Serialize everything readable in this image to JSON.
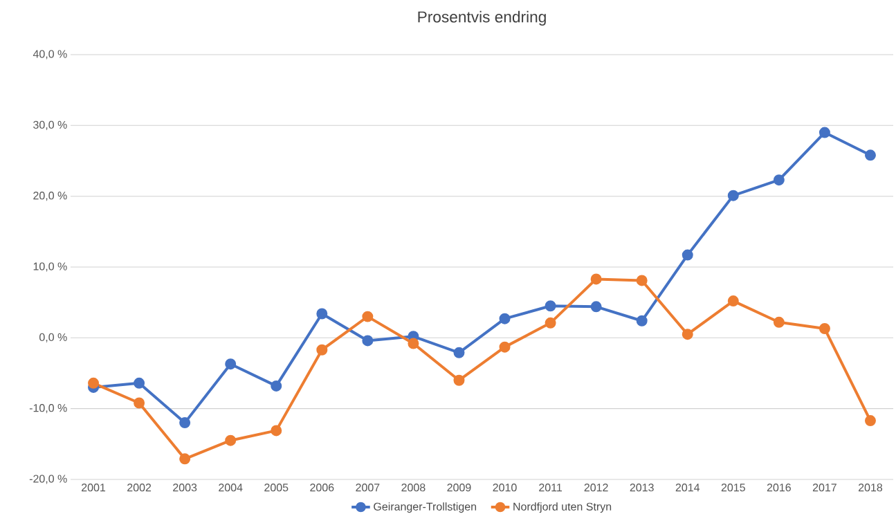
{
  "chart_data": {
    "type": "line",
    "title": "Prosentvis endring",
    "categories": [
      "2001",
      "2002",
      "2003",
      "2004",
      "2005",
      "2006",
      "2007",
      "2008",
      "2009",
      "2010",
      "2011",
      "2012",
      "2013",
      "2014",
      "2015",
      "2016",
      "2017",
      "2018"
    ],
    "series": [
      {
        "name": "Geiranger-Trollstigen",
        "color": "#4472c4",
        "values": [
          -7.0,
          -6.4,
          -12.0,
          -3.7,
          -6.8,
          3.4,
          -0.4,
          0.2,
          -2.1,
          2.7,
          4.5,
          4.4,
          2.4,
          11.7,
          20.1,
          22.3,
          29.0,
          25.8
        ]
      },
      {
        "name": "Nordfjord uten Stryn",
        "color": "#ed7d31",
        "values": [
          -6.4,
          -9.2,
          -17.1,
          -14.5,
          -13.1,
          -1.7,
          3.0,
          -0.8,
          -6.0,
          -1.3,
          2.1,
          8.3,
          8.1,
          0.5,
          5.2,
          2.2,
          1.3,
          -11.7
        ]
      }
    ],
    "ylim": [
      -20,
      40
    ],
    "yticks": [
      {
        "value": -20,
        "label": "-20,0 %"
      },
      {
        "value": -10,
        "label": "-10,0 %"
      },
      {
        "value": 0,
        "label": "0,0 %"
      },
      {
        "value": 10,
        "label": "10,0 %"
      },
      {
        "value": 20,
        "label": "20,0 %"
      },
      {
        "value": 30,
        "label": "30,0 %"
      },
      {
        "value": 40,
        "label": "40,0 %"
      }
    ],
    "grid": "y",
    "legend": "bottom",
    "marker": "circle",
    "line_style": "solid"
  }
}
